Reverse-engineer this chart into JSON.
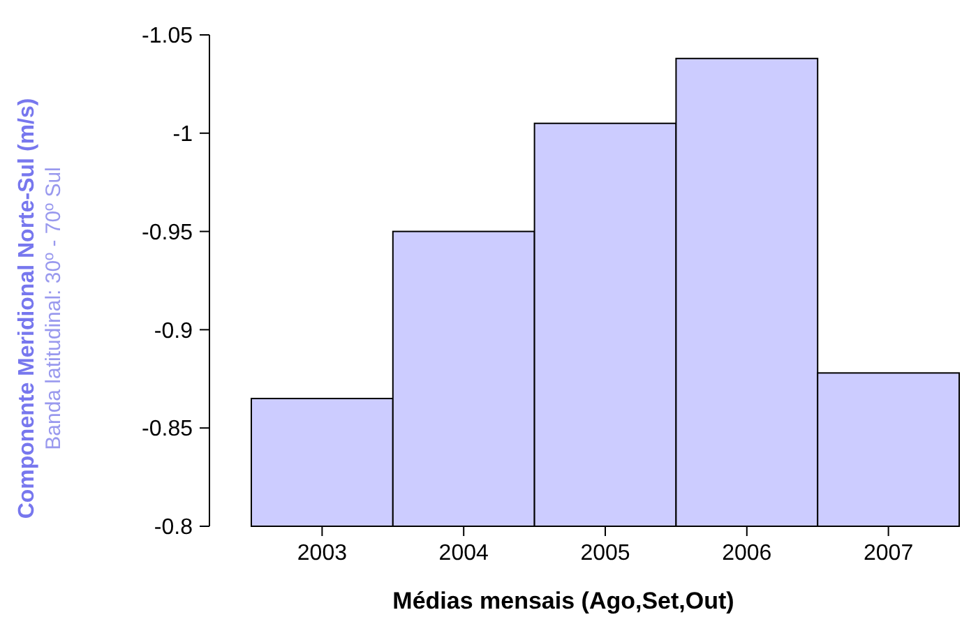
{
  "chart_data": {
    "type": "bar",
    "categories": [
      "2003",
      "2004",
      "2005",
      "2006",
      "2007"
    ],
    "values": [
      -0.865,
      -0.95,
      -1.005,
      -1.038,
      -0.878
    ],
    "color": "#ccccff",
    "ylim": [
      -0.8,
      -1.05
    ],
    "yticks": [
      -0.8,
      -0.85,
      -0.9,
      -0.95,
      {
        "value": -1,
        "label": "-1"
      },
      -1.05
    ],
    "xlabel": "Médias mensais (Ago,Set,Out)",
    "ylabel": "Componente Meridional Norte-Sul (m/s)",
    "annotations": [
      "Banda latitudinal: 30º - 70º Sul"
    ],
    "grid": false
  }
}
